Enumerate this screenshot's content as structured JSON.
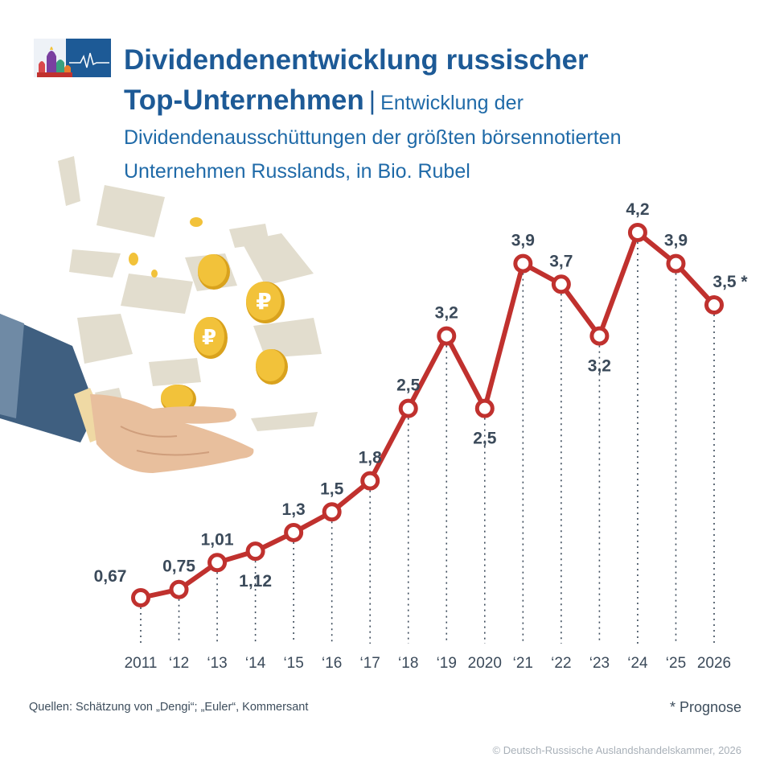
{
  "header": {
    "title_line1": "Dividendenentwicklung russischer",
    "title_line2": "Top-Unternehmen",
    "separator": "|",
    "subtitle_start": "Entwicklung der",
    "subtitle_rest_1": "Dividendenausschüttungen der größten börsennotierten",
    "subtitle_rest_2": "Unternehmen Russlands, in Bio. Rubel"
  },
  "chart_data": {
    "type": "line",
    "title": "Dividendenentwicklung russischer Top-Unternehmen",
    "subtitle": "Entwicklung der Dividendenausschüttungen der größten börsennotierten Unternehmen Russlands, in Bio. Rubel",
    "categories": [
      "2011",
      "‘12",
      "‘13",
      "‘14",
      "‘15",
      "‘16",
      "‘17",
      "‘18",
      "‘19",
      "2020",
      "‘21",
      "‘22",
      "‘23",
      "‘24",
      "‘25",
      "2026"
    ],
    "series": [
      {
        "values": [
          0.67,
          0.75,
          1.01,
          1.12,
          1.3,
          1.5,
          1.8,
          2.5,
          3.2,
          2.5,
          3.9,
          3.7,
          3.2,
          4.2,
          3.9,
          3.5
        ],
        "labels": [
          "0,67",
          "0,75",
          "1,01",
          "1,12",
          "1,3",
          "1,5",
          "1,8",
          "2,5",
          "3,2",
          "2,5",
          "3,9",
          "3,7",
          "3,2",
          "4,2",
          "3,9",
          "3,5 *"
        ]
      }
    ],
    "xlabel": "",
    "ylabel": "",
    "grid": false,
    "colors": {
      "line": "#c0312e",
      "marker_fill": "#ffffff",
      "label": "#3b4a5a",
      "dotted": "#3b4a5a"
    }
  },
  "footer": {
    "source": "Quellen: Schätzung von „Dengi“; „Euler“, Kommersant",
    "footnote": "* Prognose",
    "copyright": "© Deutsch-Russische Auslandshandelskammer, 2026"
  },
  "illustration": {
    "icons": [
      "kremlin-logo-icon",
      "hand-icon",
      "ruble-coin-icon",
      "banknote-icon"
    ],
    "colors": {
      "coin": "#f2c23a",
      "coin_dark": "#d9a21d",
      "paper": "#e2ddce",
      "skin": "#e8bf9d",
      "sleeve": "#3f5f80"
    }
  }
}
